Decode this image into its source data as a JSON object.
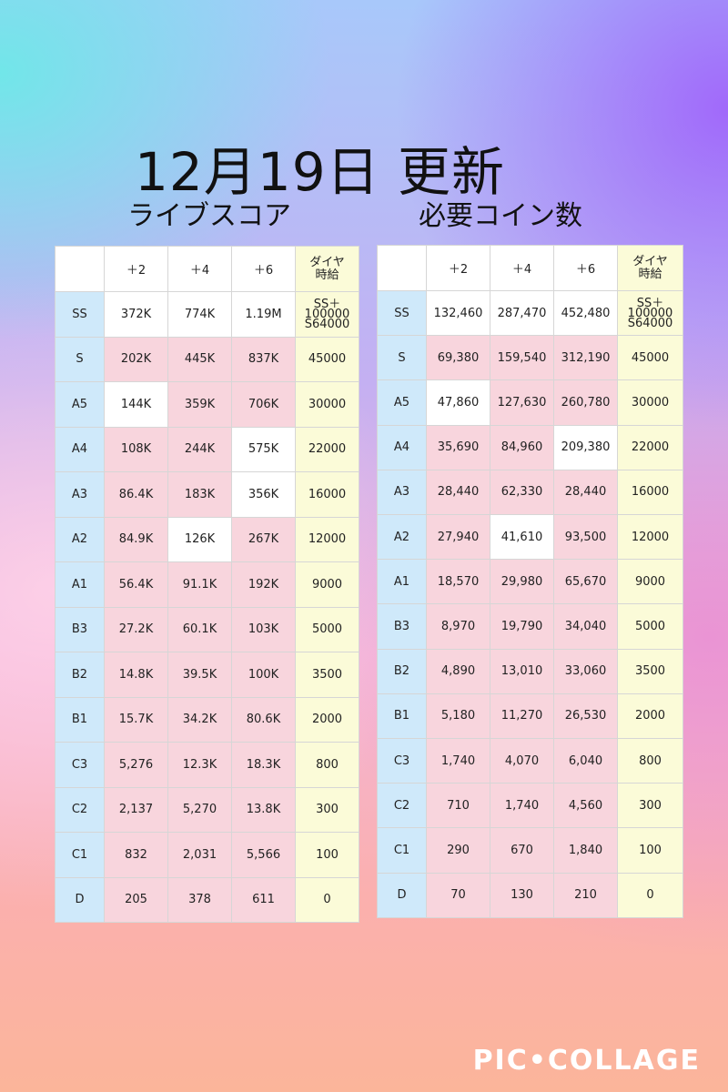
{
  "title": "12月19日  更新",
  "subtitle_left": "ライブスコア",
  "subtitle_right": "必要コイン数",
  "left_table": {
    "headers": [
      "",
      "＋2",
      "＋4",
      "＋6",
      "ダイヤ",
      "時給"
    ],
    "rows": [
      {
        "rank": "SS",
        "v2": "372K",
        "v4": "774K",
        "v6": "1.19M",
        "dia": "SS＋100000",
        "dia2": "S64000"
      },
      {
        "rank": "S",
        "v2": "202K",
        "v4": "445K",
        "v6": "837K",
        "dia": "45000"
      },
      {
        "rank": "A5",
        "v2": "144K",
        "v4": "359K",
        "v6": "706K",
        "dia": "30000"
      },
      {
        "rank": "A4",
        "v2": "108K",
        "v4": "244K",
        "v6": "575K",
        "dia": "22000"
      },
      {
        "rank": "A3",
        "v2": "86.4K",
        "v4": "183K",
        "v6": "356K",
        "dia": "16000"
      },
      {
        "rank": "A2",
        "v2": "84.9K",
        "v4": "126K",
        "v6": "267K",
        "dia": "12000"
      },
      {
        "rank": "A1",
        "v2": "56.4K",
        "v4": "91.1K",
        "v6": "192K",
        "dia": "9000"
      },
      {
        "rank": "B3",
        "v2": "27.2K",
        "v4": "60.1K",
        "v6": "103K",
        "dia": "5000"
      },
      {
        "rank": "B2",
        "v2": "14.8K",
        "v4": "39.5K",
        "v6": "100K",
        "dia": "3500"
      },
      {
        "rank": "B1",
        "v2": "15.7K",
        "v4": "34.2K",
        "v6": "80.6K",
        "dia": "2000"
      },
      {
        "rank": "C3",
        "v2": "5,276",
        "v4": "12.3K",
        "v6": "18.3K",
        "dia": "800"
      },
      {
        "rank": "C2",
        "v2": "2,137",
        "v4": "5,270",
        "v6": "13.8K",
        "dia": "300"
      },
      {
        "rank": "C1",
        "v2": "832",
        "v4": "2,031",
        "v6": "5,566",
        "dia": "100"
      },
      {
        "rank": "D",
        "v2": "205",
        "v4": "378",
        "v6": "611",
        "dia": "0"
      }
    ]
  },
  "right_table": {
    "headers": [
      "",
      "＋2",
      "＋4",
      "＋6",
      "ダイヤ",
      "時給"
    ],
    "rows": [
      {
        "rank": "SS",
        "v2": "132,460",
        "v4": "287,470",
        "v6": "452,480",
        "dia": "SS＋100000",
        "dia2": "S64000"
      },
      {
        "rank": "S",
        "v2": "69,380",
        "v4": "159,540",
        "v6": "312,190",
        "dia": "45000"
      },
      {
        "rank": "A5",
        "v2": "47,860",
        "v4": "127,630",
        "v6": "260,780",
        "dia": "30000"
      },
      {
        "rank": "A4",
        "v2": "35,690",
        "v4": "84,960",
        "v6": "209,380",
        "dia": "22000"
      },
      {
        "rank": "A3",
        "v2": "28,440",
        "v4": "62,330",
        "v6": "28,440",
        "dia": "16000"
      },
      {
        "rank": "A2",
        "v2": "27,940",
        "v4": "41,610",
        "v6": "93,500",
        "dia": "12000"
      },
      {
        "rank": "A1",
        "v2": "18,570",
        "v4": "29,980",
        "v6": "65,670",
        "dia": "9000"
      },
      {
        "rank": "B3",
        "v2": "8,970",
        "v4": "19,790",
        "v6": "34,040",
        "dia": "5000"
      },
      {
        "rank": "B2",
        "v2": "4,890",
        "v4": "13,010",
        "v6": "33,060",
        "dia": "3500"
      },
      {
        "rank": "B1",
        "v2": "5,180",
        "v4": "11,270",
        "v6": "26,530",
        "dia": "2000"
      },
      {
        "rank": "C3",
        "v2": "1,740",
        "v4": "4,070",
        "v6": "6,040",
        "dia": "800"
      },
      {
        "rank": "C2",
        "v2": "710",
        "v4": "1,740",
        "v6": "4,560",
        "dia": "300"
      },
      {
        "rank": "C1",
        "v2": "290",
        "v4": "670",
        "v6": "1,840",
        "dia": "100"
      },
      {
        "rank": "D",
        "v2": "70",
        "v4": "130",
        "v6": "210",
        "dia": "0"
      }
    ]
  },
  "colors": {
    "rank_cell": "#cfe9fa",
    "pink_cell": "#f8d5dd",
    "white_cell": "#ffffff",
    "diamond_cell": "#fbfbd8"
  },
  "logo": "PIC•COLLAGE"
}
